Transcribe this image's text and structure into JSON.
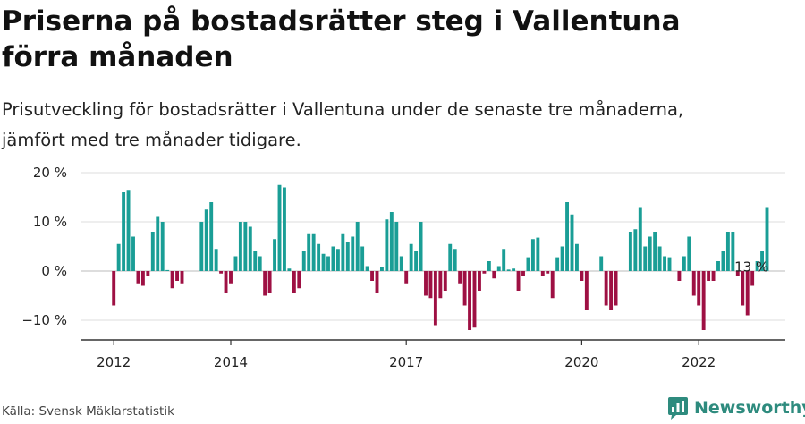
{
  "title_line1": "Priserna på bostadsrätter steg i Vallentuna",
  "title_line2": "förra månaden",
  "subtitle_line1": "Prisutveckling för bostadsrätter i Vallentuna under de senaste tre månaderna,",
  "subtitle_line2": "jämfört med tre månader tidigare.",
  "source": "Källa: Svensk Mäklarstatistik",
  "brand": "Newsworthy",
  "colors": {
    "positive": "#1a9e96",
    "negative": "#9e1043",
    "grid": "#dddddd",
    "axis": "#333333",
    "brand": "#2e8b7e"
  },
  "chart_data": {
    "type": "bar",
    "title": "Priserna på bostadsrätter steg i Vallentuna förra månaden",
    "ylabel": "",
    "xlabel": "",
    "ylim": [
      -13,
      20
    ],
    "y_ticks": [
      {
        "value": 20,
        "label": "20 %"
      },
      {
        "value": 10,
        "label": "10 %"
      },
      {
        "value": 0,
        "label": "0 %"
      },
      {
        "value": -10,
        "label": "−10 %"
      }
    ],
    "x_ticks": [
      {
        "index": 0,
        "label": "2012"
      },
      {
        "index": 24,
        "label": "2014"
      },
      {
        "index": 60,
        "label": "2017"
      },
      {
        "index": 96,
        "label": "2020"
      },
      {
        "index": 120,
        "label": "2022"
      }
    ],
    "start": "2012-01",
    "annotation": {
      "index": 131,
      "label": "13 %"
    },
    "values": [
      -7,
      5.5,
      16,
      16.5,
      7,
      -2.5,
      -3,
      -1,
      8,
      11,
      10,
      0.2,
      -3.5,
      -2,
      -2.5,
      0,
      0,
      0,
      10,
      12.5,
      14,
      4.5,
      -0.5,
      -4.5,
      -2.5,
      3,
      10,
      10,
      9,
      4,
      3,
      -5,
      -4.5,
      6.5,
      17.5,
      17,
      0.5,
      -4.5,
      -3.5,
      4,
      7.5,
      7.5,
      5.5,
      3.5,
      3,
      5,
      4.5,
      7.5,
      6,
      7,
      10,
      5,
      1,
      -2,
      -4.5,
      0.8,
      10.5,
      12,
      10,
      3,
      -2.5,
      5.5,
      4,
      10,
      -5,
      -5.5,
      -11,
      -5.5,
      -4,
      5.5,
      4.5,
      -2.5,
      -7,
      -12,
      -11.5,
      -4,
      -0.5,
      2,
      -1.5,
      1,
      4.5,
      0.3,
      0.5,
      -4,
      -1,
      2.8,
      6.5,
      6.8,
      -1,
      -0.5,
      -5.5,
      2.8,
      5,
      14,
      11.5,
      5.5,
      -2,
      -8,
      0,
      0,
      3,
      -7,
      -8,
      -7,
      0,
      0,
      8,
      8.5,
      13,
      5,
      7,
      8,
      5,
      3,
      2.8,
      0,
      -2,
      3,
      7,
      -5,
      -7,
      -12,
      -2,
      -2,
      2,
      4,
      8,
      8,
      -1,
      -7,
      -9,
      -3,
      2,
      4,
      13
    ]
  }
}
